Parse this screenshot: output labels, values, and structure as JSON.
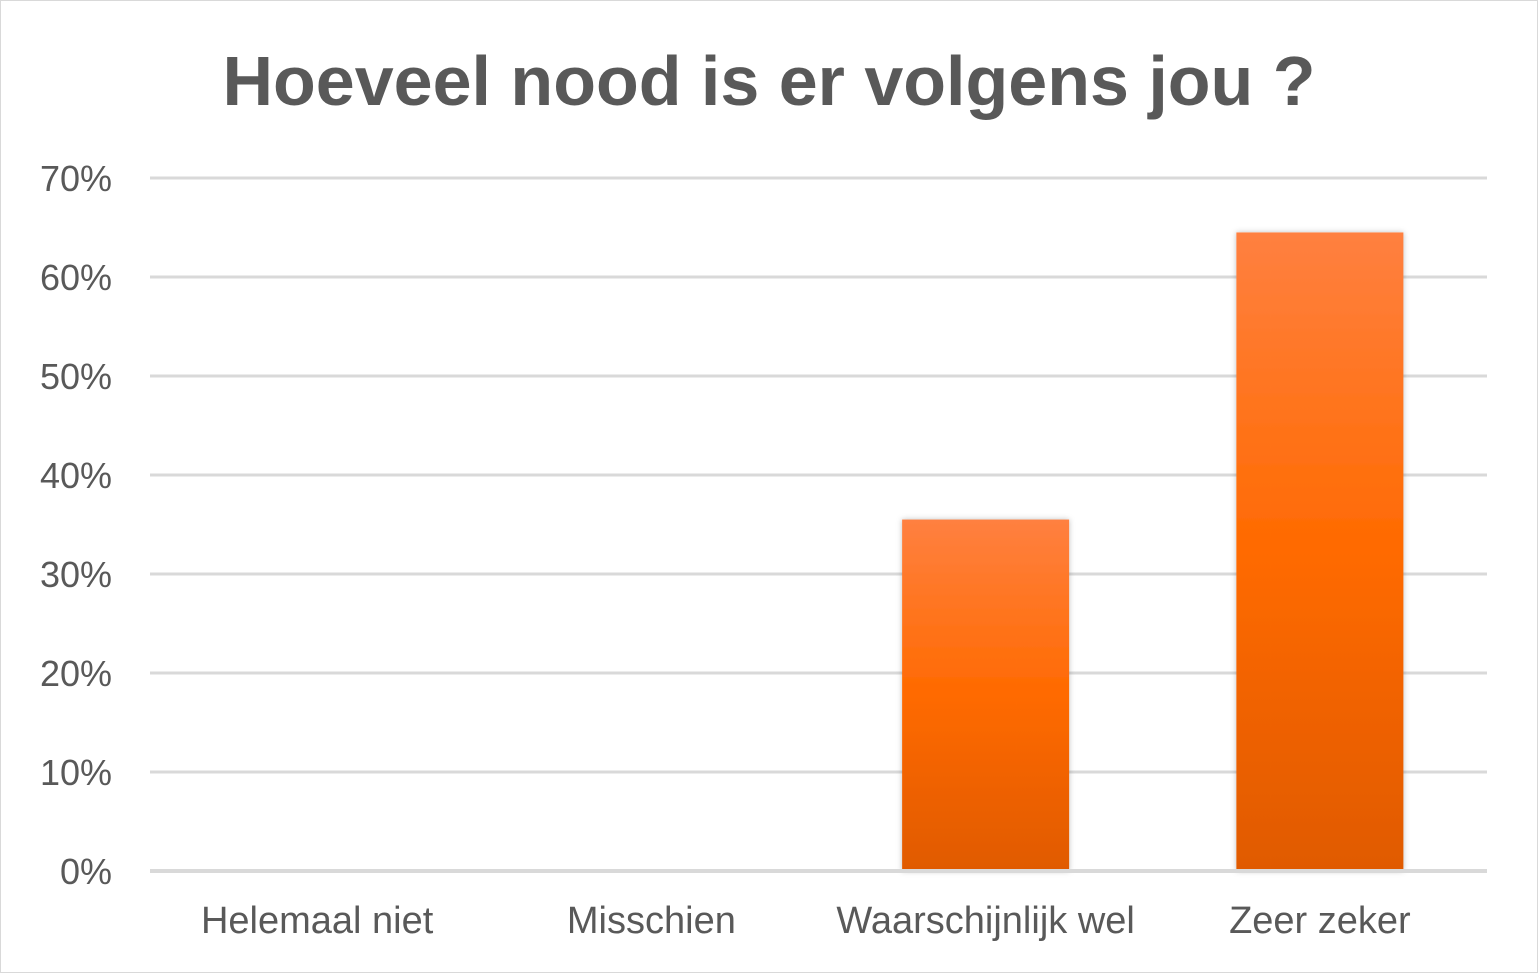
{
  "chart_data": {
    "type": "bar",
    "title": "Hoeveel nood is er volgens jou ?",
    "categories": [
      "Helemaal niet",
      "Misschien",
      "Waarschijnlijk wel",
      "Zeer zeker"
    ],
    "values": [
      0,
      0,
      35.5,
      64.5
    ],
    "ylim": [
      0,
      70
    ],
    "yticks": [
      "0%",
      "10%",
      "20%",
      "30%",
      "40%",
      "50%",
      "60%",
      "70%"
    ],
    "ytick_values": [
      0,
      10,
      20,
      30,
      40,
      50,
      60,
      70
    ],
    "grid": true,
    "legend": "none",
    "colors": {
      "bar_top": "#ff8040",
      "bar_mid": "#ff6a00",
      "bar_bottom": "#e05a00"
    }
  }
}
